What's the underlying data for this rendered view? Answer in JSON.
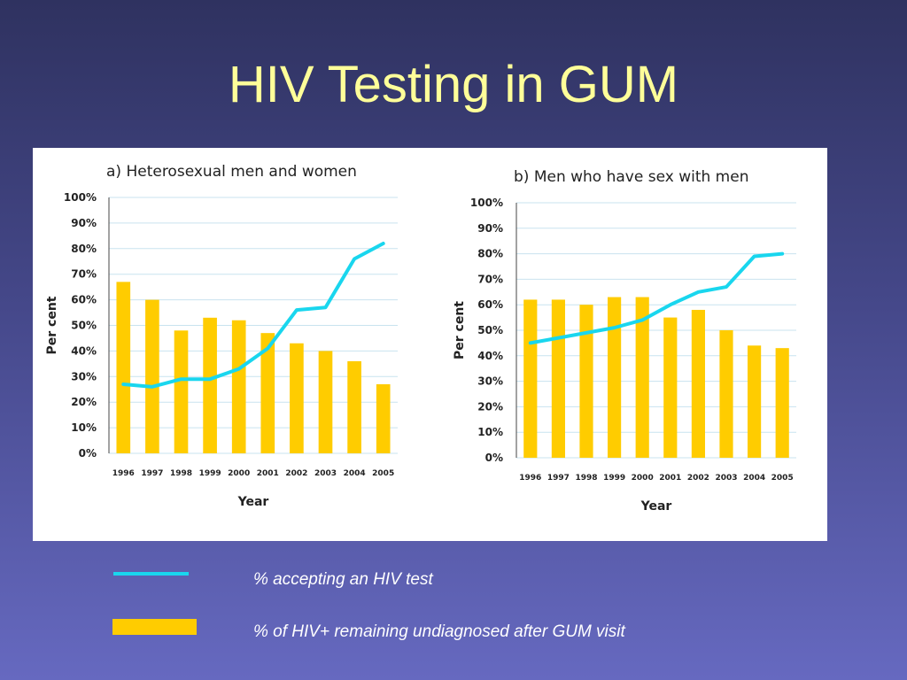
{
  "slide": {
    "title": "HIV Testing in GUM"
  },
  "legend": {
    "line_label": "% accepting an HIV test",
    "bar_label": "% of HIV+ remaining undiagnosed after GUM visit",
    "line_color": "#19d6ee",
    "bar_color": "#ffcc00"
  },
  "chart_data": [
    {
      "type": "bar",
      "title": "a) Heterosexual men and women",
      "xlabel": "Year",
      "ylabel": "Per cent",
      "ylim": [
        0,
        100
      ],
      "yticks": [
        "0%",
        "10%",
        "20%",
        "30%",
        "40%",
        "50%",
        "60%",
        "70%",
        "80%",
        "90%",
        "100%"
      ],
      "categories": [
        "1996",
        "1997",
        "1998",
        "1999",
        "2000",
        "2001",
        "2002",
        "2003",
        "2004",
        "2005"
      ],
      "grid": true,
      "series": [
        {
          "name": "% of HIV+ remaining undiagnosed after GUM visit",
          "kind": "bar",
          "values": [
            67,
            60,
            48,
            53,
            52,
            47,
            43,
            40,
            36,
            27
          ]
        },
        {
          "name": "% accepting an HIV test",
          "kind": "line",
          "values": [
            27,
            26,
            29,
            29,
            33,
            41,
            56,
            57,
            76,
            82
          ]
        }
      ]
    },
    {
      "type": "bar",
      "title": "b) Men who have sex with men",
      "xlabel": "Year",
      "ylabel": "Per cent",
      "ylim": [
        0,
        100
      ],
      "yticks": [
        "0%",
        "10%",
        "20%",
        "30%",
        "40%",
        "50%",
        "60%",
        "70%",
        "80%",
        "90%",
        "100%"
      ],
      "categories": [
        "1996",
        "1997",
        "1998",
        "1999",
        "2000",
        "2001",
        "2002",
        "2003",
        "2004",
        "2005"
      ],
      "grid": true,
      "series": [
        {
          "name": "% of HIV+ remaining undiagnosed after GUM visit",
          "kind": "bar",
          "values": [
            62,
            62,
            60,
            63,
            63,
            55,
            58,
            50,
            44,
            43
          ]
        },
        {
          "name": "% accepting an HIV test",
          "kind": "line",
          "values": [
            45,
            47,
            49,
            51,
            54,
            60,
            65,
            67,
            79,
            80
          ]
        }
      ]
    }
  ]
}
